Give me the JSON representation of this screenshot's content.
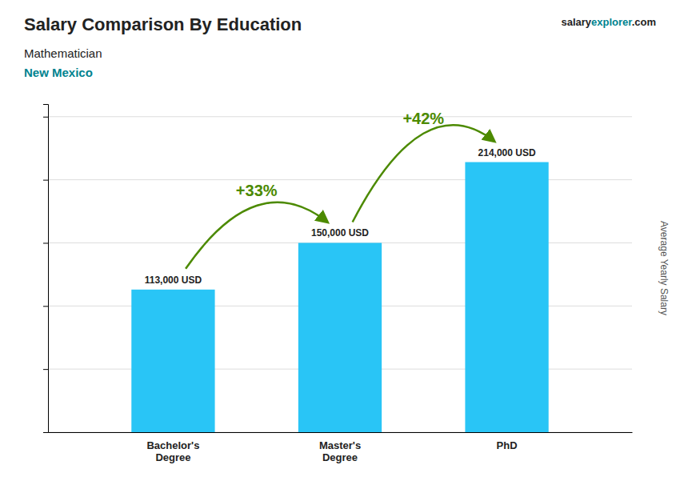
{
  "chart_data": {
    "type": "bar",
    "title": "Salary Comparison By Education",
    "subtitle": [
      "Mathematician",
      "New Mexico"
    ],
    "brand": [
      "salary",
      "explorer",
      ".com"
    ],
    "y_label": "Average Yearly Salary",
    "categories": [
      "Bachelor's\nDegree",
      "Master's\nDegree",
      "PhD"
    ],
    "values": [
      113000,
      150000,
      214000
    ],
    "value_labels": [
      "113,000 USD",
      "150,000 USD",
      "214,000 USD"
    ],
    "data_labels": true,
    "color": "#29c5f6",
    "annotations": [
      "+33%",
      "+42%"
    ],
    "ylim": [
      0,
      260000
    ],
    "yticks": [
      0,
      50000,
      100000,
      150000,
      200000,
      250000
    ],
    "grid": true,
    "tick_labels": "x"
  }
}
